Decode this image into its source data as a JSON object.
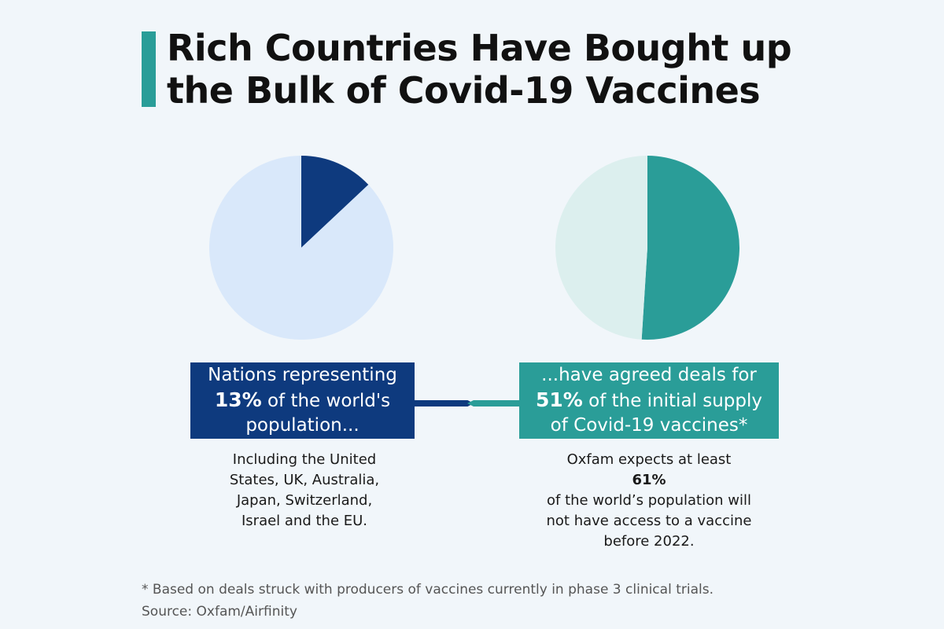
{
  "title": {
    "line1": "Rich Countries Have Bought up",
    "line2": "the Bulk of Covid-19 Vaccines"
  },
  "colors": {
    "accent": "#2a9d98",
    "navy": "#0e3a7e",
    "pie_left_rest": "#d9e8fa",
    "pie_right_rest": "#dcefee",
    "background": "#f1f6fa"
  },
  "chart_data": [
    {
      "type": "pie",
      "slices": [
        {
          "value": 13,
          "color": "#0e3a7e"
        },
        {
          "value": 87,
          "color": "#d9e8fa"
        }
      ]
    },
    {
      "type": "pie",
      "slices": [
        {
          "value": 51,
          "color": "#2a9d98"
        },
        {
          "value": 49,
          "color": "#dcefee"
        }
      ]
    }
  ],
  "left_box": {
    "line1": "Nations representing",
    "pct": "13%",
    "line2_rest": " of the world's",
    "line3": "population..."
  },
  "right_box": {
    "line1": "...have agreed deals for",
    "pct": "51%",
    "line2_rest": " of the initial supply",
    "line3": "of Covid-19 vaccines*"
  },
  "left_desc": {
    "line1": "Including the United",
    "line2": "States, UK, Australia,",
    "line3": "Japan, Switzerland,",
    "line4": "Israel and the EU."
  },
  "right_desc": {
    "line1_pre": "Oxfam expects at least ",
    "line1_pct": "61%",
    "line2": "of the world’s population will",
    "line3": "not have access to a vaccine",
    "line4": "before 2022."
  },
  "footnote": {
    "note": "* Based on deals struck with producers of vaccines currently in phase 3 clinical trials.",
    "source": "Source: Oxfam/Airfinity"
  }
}
